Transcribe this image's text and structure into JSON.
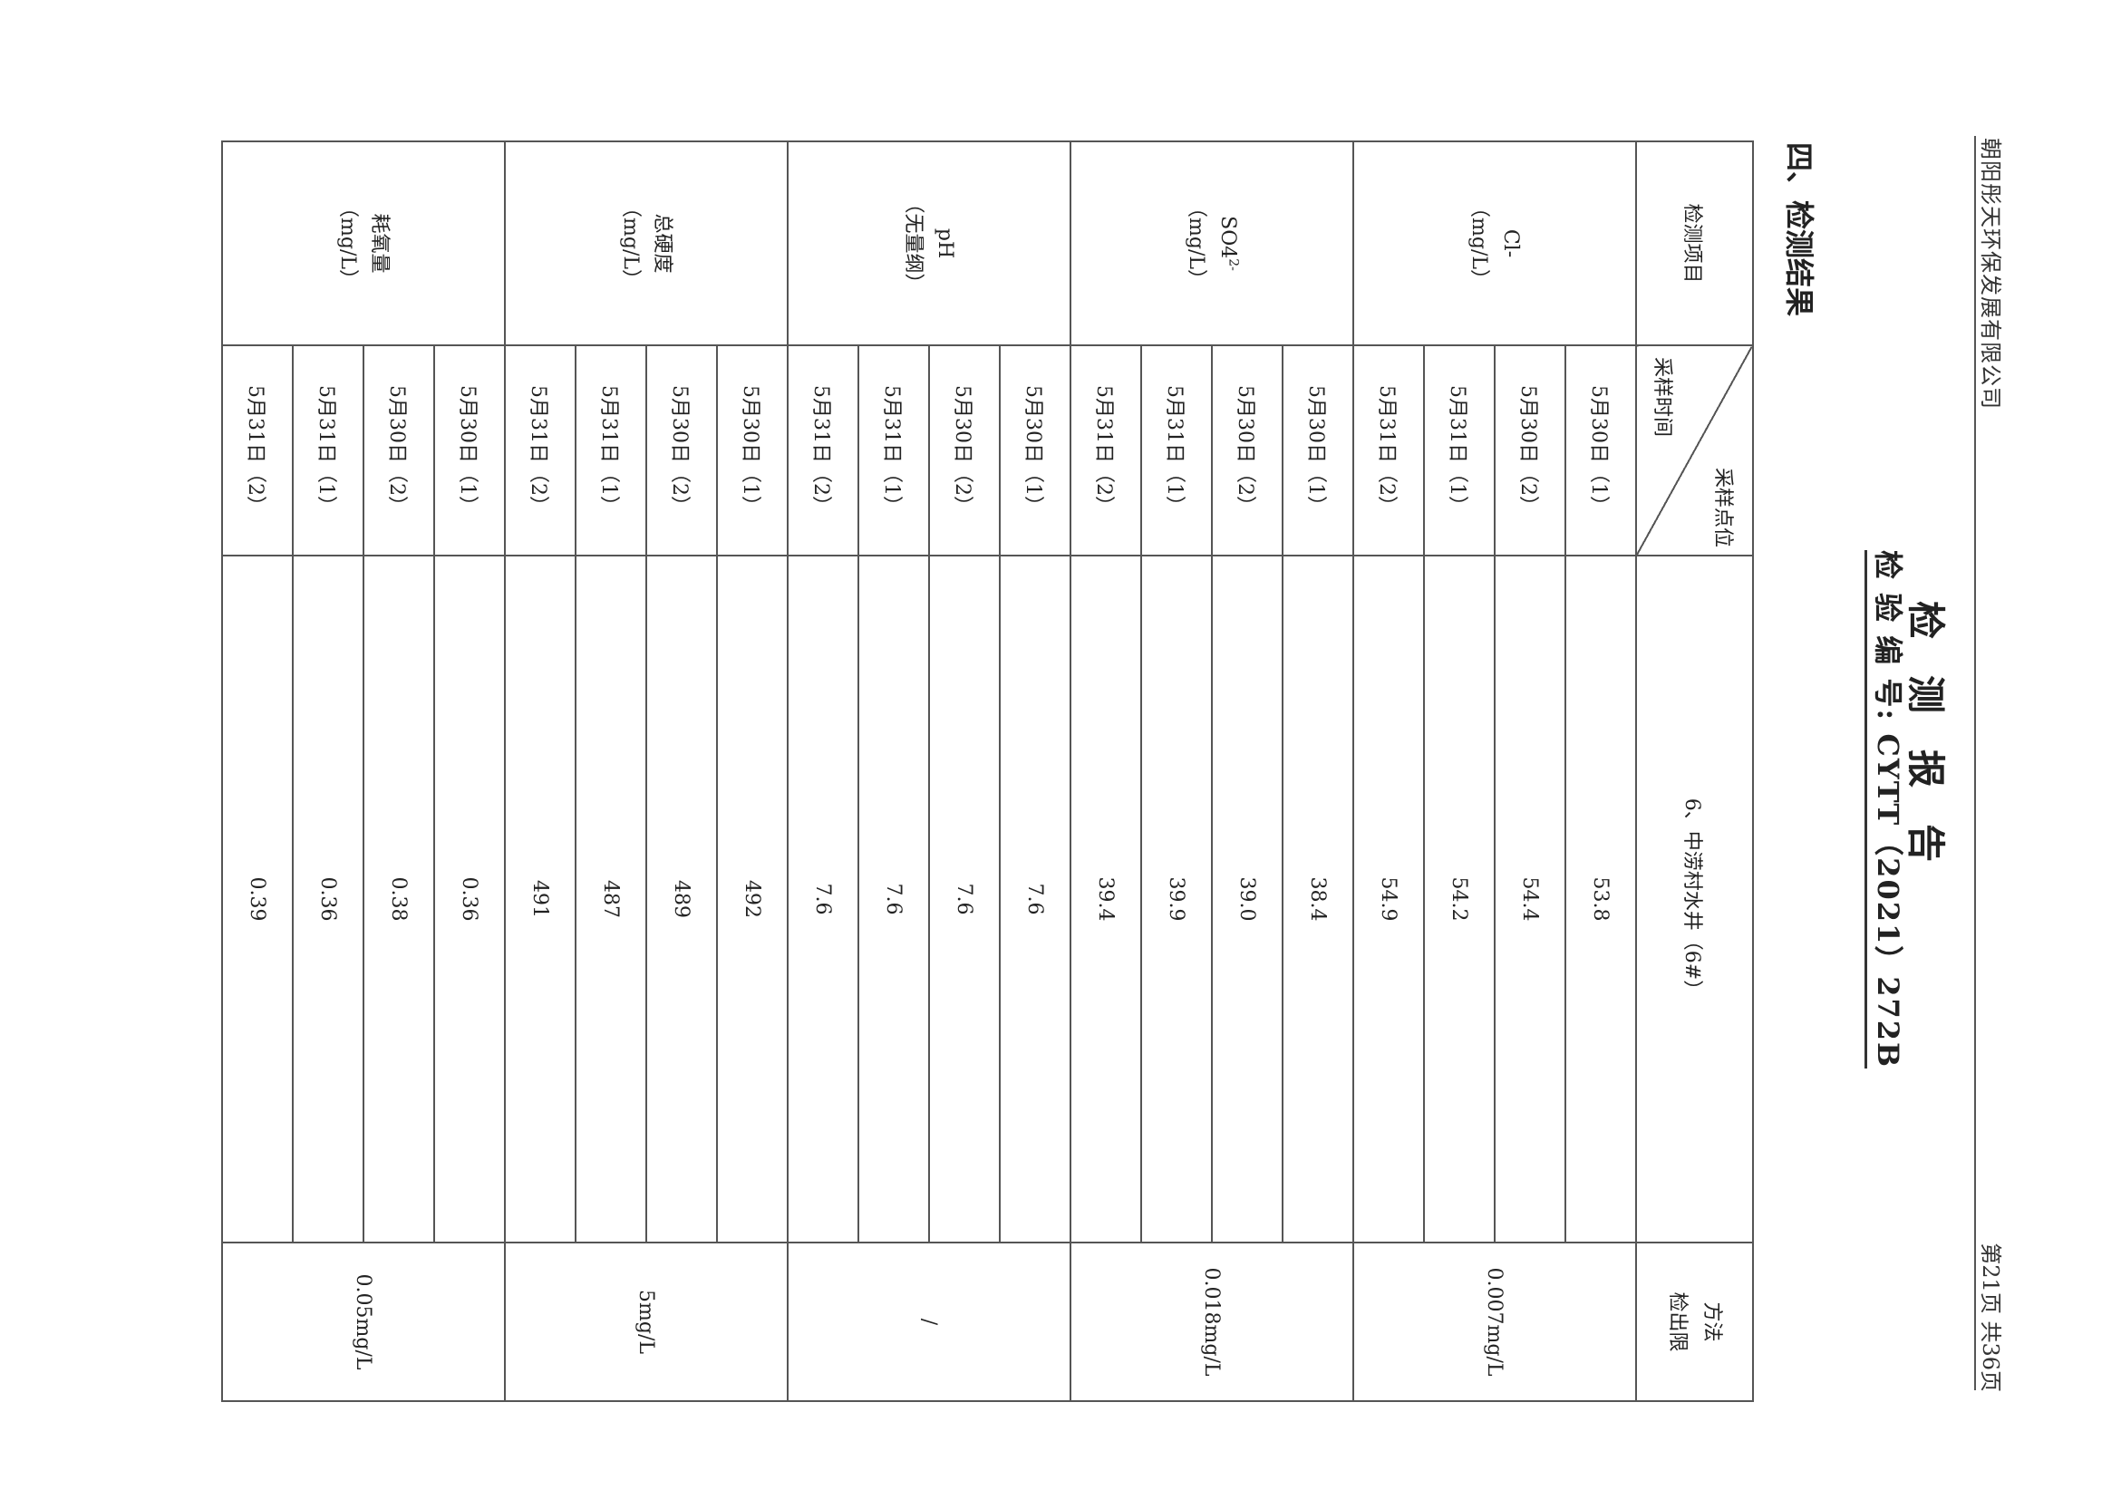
{
  "header": {
    "company": "朝阳彤天环保发展有限公司",
    "page_number": "第21页  共36页",
    "title": "检测报告",
    "report_number": "检 验 编 号: CYTT（2021）272B"
  },
  "section_title": "四、检测结果",
  "table": {
    "col_item": "检测项目",
    "col_location_label": "采样点位",
    "col_time_label": "采样时间",
    "location": "6、中涝村水井（6#）",
    "col_limit_line1": "方法",
    "col_limit_line2": "检出限",
    "groups": [
      {
        "name": "Cl-",
        "name_sup": "",
        "unit": "（mg/L）",
        "limit": "0.007mg/L",
        "rows": [
          {
            "time": "5月30日（1）",
            "value": "53.8"
          },
          {
            "time": "5月30日（2）",
            "value": "54.4"
          },
          {
            "time": "5月31日（1）",
            "value": "54.2"
          },
          {
            "time": "5月31日（2）",
            "value": "54.9"
          }
        ]
      },
      {
        "name": "SO4",
        "name_sup": "2-",
        "unit": "（mg/L）",
        "limit": "0.018mg/L",
        "rows": [
          {
            "time": "5月30日（1）",
            "value": "38.4"
          },
          {
            "time": "5月30日（2）",
            "value": "39.0"
          },
          {
            "time": "5月31日（1）",
            "value": "39.9"
          },
          {
            "time": "5月31日（2）",
            "value": "39.4"
          }
        ]
      },
      {
        "name": "pH",
        "name_sup": "",
        "unit": "（无量纲）",
        "limit": "/",
        "rows": [
          {
            "time": "5月30日（1）",
            "value": "7.6"
          },
          {
            "time": "5月30日（2）",
            "value": "7.6"
          },
          {
            "time": "5月31日（1）",
            "value": "7.6"
          },
          {
            "time": "5月31日（2）",
            "value": "7.6"
          }
        ]
      },
      {
        "name": "总硬度",
        "name_sup": "",
        "unit": "（mg/L）",
        "limit": "5mg/L",
        "rows": [
          {
            "time": "5月30日（1）",
            "value": "492"
          },
          {
            "time": "5月30日（2）",
            "value": "489"
          },
          {
            "time": "5月31日（1）",
            "value": "487"
          },
          {
            "time": "5月31日（2）",
            "value": "491"
          }
        ]
      },
      {
        "name": "耗氧量",
        "name_sup": "",
        "unit": "（mg/L）",
        "limit": "0.05mg/L",
        "rows": [
          {
            "time": "5月30日（1）",
            "value": "0.36"
          },
          {
            "time": "5月30日（2）",
            "value": "0.38"
          },
          {
            "time": "5月31日（1）",
            "value": "0.36"
          },
          {
            "time": "5月31日（2）",
            "value": "0.39"
          }
        ]
      }
    ]
  }
}
